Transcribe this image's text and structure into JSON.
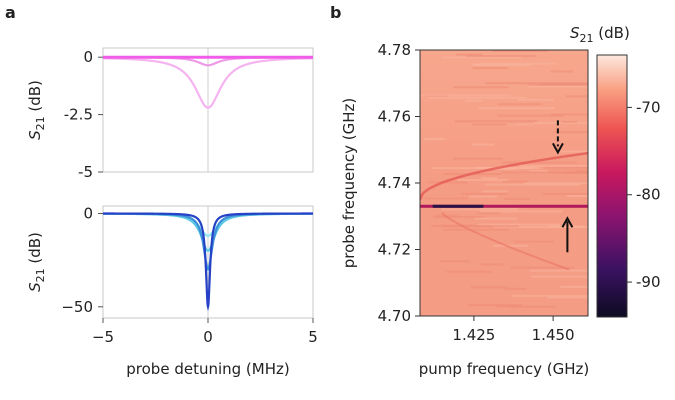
{
  "panels": {
    "a": "a",
    "b": "b"
  },
  "chart_data": [
    {
      "id": "a-top",
      "type": "line",
      "ylabel": "S21 (dB)",
      "ylabel_main": "S",
      "ylabel_sub": "21",
      "ylabel_unit": " (dB)",
      "xlim": [
        -5,
        5
      ],
      "ylim": [
        -5,
        0.4
      ],
      "yticks": [
        0,
        -2.5,
        -5
      ],
      "ytick_labels": [
        "0",
        "-2.5",
        "-5"
      ],
      "series": [
        {
          "name": "wide dip",
          "color": "#f5b3ef",
          "depth": -2.2,
          "width": 0.75
        },
        {
          "name": "shallow dip",
          "color": "#ee9ae8",
          "depth": -0.35,
          "width": 0.6
        },
        {
          "name": "flat",
          "color": "#f05de8",
          "depth": 0.0,
          "width": 1.0
        }
      ]
    },
    {
      "id": "a-bottom",
      "type": "line",
      "xlabel": "probe detuning (MHz)",
      "ylabel": "S21 (dB)",
      "ylabel_main": "S",
      "ylabel_sub": "21",
      "ylabel_unit": " (dB)",
      "xlim": [
        -5,
        5
      ],
      "xticks": [
        -5,
        0,
        5
      ],
      "xtick_labels": [
        "−5",
        "0",
        "5"
      ],
      "ylim": [
        -56,
        4
      ],
      "yticks": [
        0,
        -50
      ],
      "ytick_labels": [
        "0",
        "−50"
      ],
      "series": [
        {
          "name": "light cyan",
          "color": "#8fe6f2",
          "depth": -12,
          "width": 0.5
        },
        {
          "name": "cyan",
          "color": "#5fc9e6",
          "depth": -20,
          "width": 0.4
        },
        {
          "name": "blue",
          "color": "#3d8fd8",
          "depth": -30,
          "width": 0.25
        },
        {
          "name": "dark blue",
          "color": "#2642c6",
          "depth": -50,
          "width": 0.12
        }
      ]
    },
    {
      "id": "b",
      "type": "heatmap",
      "xlabel": "pump frequency (GHz)",
      "ylabel": "probe frequency (GHz)",
      "xlim": [
        1.408,
        1.461
      ],
      "xticks": [
        1.425,
        1.45
      ],
      "xtick_labels": [
        "1.425",
        "1.450"
      ],
      "ylim": [
        4.7,
        4.78
      ],
      "yticks": [
        4.7,
        4.72,
        4.74,
        4.76,
        4.78
      ],
      "ytick_labels": [
        "4.70",
        "4.72",
        "4.74",
        "4.76",
        "4.78"
      ],
      "features": [
        {
          "name": "horizontal resonance",
          "probe_ghz": 4.733
        },
        {
          "name": "upper branch",
          "pump_ghz": [
            1.408,
            1.461
          ],
          "probe_ghz": [
            4.735,
            4.749
          ]
        },
        {
          "name": "lower branch",
          "pump_ghz": [
            1.415,
            1.455
          ],
          "probe_ghz": [
            4.731,
            4.714
          ]
        }
      ],
      "arrows": [
        {
          "style": "dashed",
          "pump_ghz": 1.4515,
          "probe_ghz": 4.748,
          "direction": "down"
        },
        {
          "style": "solid",
          "pump_ghz": 1.4545,
          "probe_ghz": 4.733,
          "direction": "up"
        }
      ],
      "colorbar": {
        "title": "S21 (dB)",
        "title_main": "S",
        "title_sub": "21",
        "title_unit": " (dB)",
        "range": [
          -94,
          -64
        ],
        "ticks": [
          -70,
          -80,
          -90
        ],
        "tick_labels": [
          "-70",
          "-80",
          "-90"
        ]
      }
    }
  ]
}
